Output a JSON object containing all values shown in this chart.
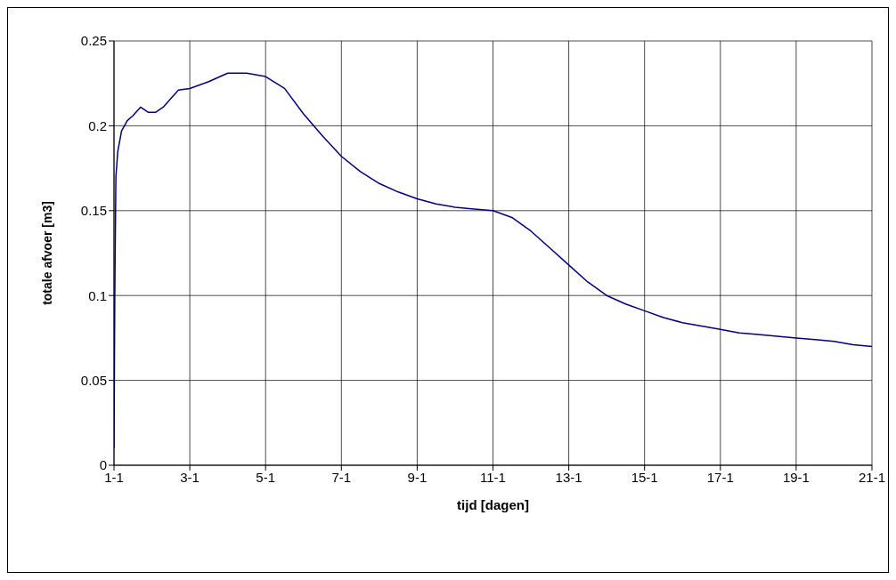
{
  "chart_data": {
    "type": "line",
    "xlabel": "tijd [dagen]",
    "ylabel": "totale afvoer [m3]",
    "x": [
      "--01-01",
      "--01-01T00:30",
      "--01-01T01:12",
      "--01-01T02:24",
      "--01-01T04:48",
      "--01-01T08:24",
      "--01-01T12:00",
      "--01-01T16:48",
      "--01-01T21:36",
      "--01-02T02:24",
      "--01-02T07:12",
      "--01-02T12:00",
      "--01-02T16:48",
      "--01-03",
      "--01-03T12:00",
      "--01-04",
      "--01-04T12:00",
      "--01-05",
      "--01-05T12:00",
      "--01-06",
      "--01-06T12:00",
      "--01-07",
      "--01-07T12:00",
      "--01-08",
      "--01-08T12:00",
      "--01-09",
      "--01-09T12:00",
      "--01-10",
      "--01-10T12:00",
      "--01-11",
      "--01-11T12:00",
      "--01-12",
      "--01-12T12:00",
      "--01-13",
      "--01-13T12:00",
      "--01-14",
      "--01-14T12:00",
      "--01-15",
      "--01-15T12:00",
      "--01-16",
      "--01-16T12:00",
      "--01-17",
      "--01-17T12:00",
      "--01-18",
      "--01-18T12:00",
      "--01-19",
      "--01-19T12:00",
      "--01-20",
      "--01-20T12:00",
      "--01-21"
    ],
    "series": [
      {
        "color": "#000080",
        "values": [
          0.01,
          0.1,
          0.17,
          0.185,
          0.197,
          0.203,
          0.206,
          0.211,
          0.208,
          0.208,
          0.211,
          0.216,
          0.221,
          0.222,
          0.226,
          0.231,
          0.231,
          0.229,
          0.222,
          0.207,
          0.194,
          0.182,
          0.173,
          0.166,
          0.161,
          0.157,
          0.154,
          0.152,
          0.151,
          0.15,
          0.146,
          0.138,
          0.128,
          0.118,
          0.108,
          0.1,
          0.095,
          0.091,
          0.087,
          0.084,
          0.082,
          0.08,
          0.078,
          0.077,
          0.076,
          0.075,
          0.074,
          0.073,
          0.071,
          0.07
        ]
      }
    ],
    "xlim": [
      "--01-01",
      "--01-21"
    ],
    "xticks": [
      {
        "value": "--01-01",
        "label": "1-1"
      },
      {
        "value": "--01-03",
        "label": "3-1"
      },
      {
        "value": "--01-05",
        "label": "5-1"
      },
      {
        "value": "--01-07",
        "label": "7-1"
      },
      {
        "value": "--01-09",
        "label": "9-1"
      },
      {
        "value": "--01-11",
        "label": "11-1"
      },
      {
        "value": "--01-13",
        "label": "13-1"
      },
      {
        "value": "--01-15",
        "label": "15-1"
      },
      {
        "value": "--01-17",
        "label": "17-1"
      },
      {
        "value": "--01-19",
        "label": "19-1"
      },
      {
        "value": "--01-21",
        "label": "21-1"
      }
    ],
    "ylim": [
      0,
      0.25
    ],
    "yticks": [
      0,
      0.05,
      0.1,
      0.15,
      0.2,
      0.25
    ],
    "grid": true,
    "legend": false,
    "marker": "none",
    "line_style": "solid"
  }
}
